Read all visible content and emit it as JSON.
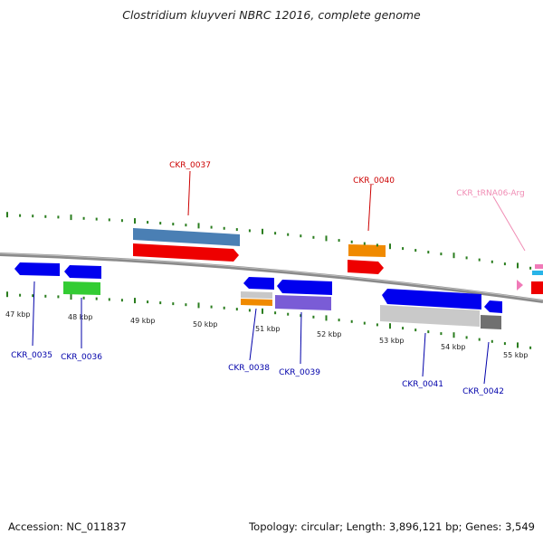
{
  "title": "Clostridium kluyveri NBRC 12016, complete genome",
  "footer": {
    "accession": "Accession: NC_011837",
    "summary": "Topology: circular; Length: 3,896,121 bp; Genes: 3,549"
  },
  "colors": {
    "backbone": "#8a8a8a",
    "scale_ticks": "#2a7d1e",
    "label_top": "#cc0000",
    "label_trna": "#f08cb4",
    "label_bottom": "#0000aa"
  },
  "scale_labels": [
    "47 kbp",
    "48 kbp",
    "49 kbp",
    "50 kbp",
    "51 kbp",
    "52 kbp",
    "53 kbp",
    "54 kbp",
    "55 kbp"
  ],
  "gene_labels": {
    "top": [
      "CKR_0037",
      "CKR_0040",
      "CKR_tRNA06-Arg"
    ],
    "bottom": [
      "CKR_0035",
      "CKR_0036",
      "CKR_0038",
      "CKR_0039",
      "CKR_0041",
      "CKR_0042"
    ]
  }
}
